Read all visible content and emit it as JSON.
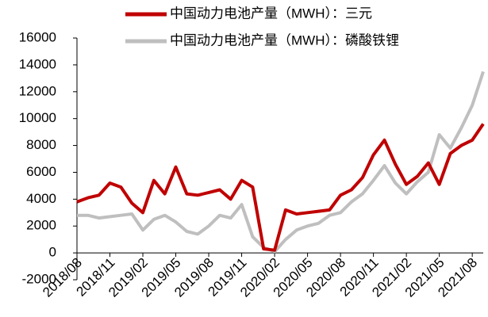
{
  "chart_data": {
    "type": "line",
    "categories": [
      "2018/08",
      null,
      null,
      "2018/11",
      null,
      null,
      "2019/02",
      null,
      null,
      "2019/05",
      null,
      null,
      "2019/08",
      null,
      null,
      "2019/11",
      null,
      null,
      "2020/02",
      null,
      null,
      "2020/05",
      null,
      null,
      "2020/08",
      null,
      null,
      "2020/11",
      null,
      null,
      "2021/02",
      null,
      null,
      "2021/05",
      null,
      null,
      "2021/08",
      null
    ],
    "series": [
      {
        "name": "中国动力电池产量（MWH）：三元",
        "color": "#c00000",
        "values": [
          3800,
          4100,
          4300,
          5200,
          4900,
          3700,
          3000,
          5400,
          4400,
          6400,
          4400,
          4300,
          4500,
          4700,
          4000,
          5400,
          4900,
          300,
          200,
          3200,
          2900,
          3000,
          3100,
          3200,
          4300,
          4700,
          5600,
          7300,
          8400,
          6600,
          5100,
          5700,
          6700,
          5100,
          7400,
          8000,
          8400,
          9600
        ]
      },
      {
        "name": "中国动力电池产量（MWH）：磷酸铁锂",
        "color": "#bfbfbf",
        "values": [
          2800,
          2800,
          2600,
          2700,
          2800,
          2900,
          1700,
          2500,
          2800,
          2300,
          1600,
          1400,
          2000,
          2800,
          2600,
          3600,
          1200,
          400,
          100,
          1000,
          1700,
          2000,
          2200,
          2800,
          3000,
          3800,
          4400,
          5400,
          6500,
          5200,
          4400,
          5300,
          6000,
          8800,
          7800,
          9300,
          11000,
          13500
        ]
      }
    ],
    "ylim": [
      -2000,
      16000
    ],
    "yticks": [
      -2000,
      0,
      2000,
      4000,
      6000,
      8000,
      10000,
      12000,
      14000,
      16000
    ]
  }
}
